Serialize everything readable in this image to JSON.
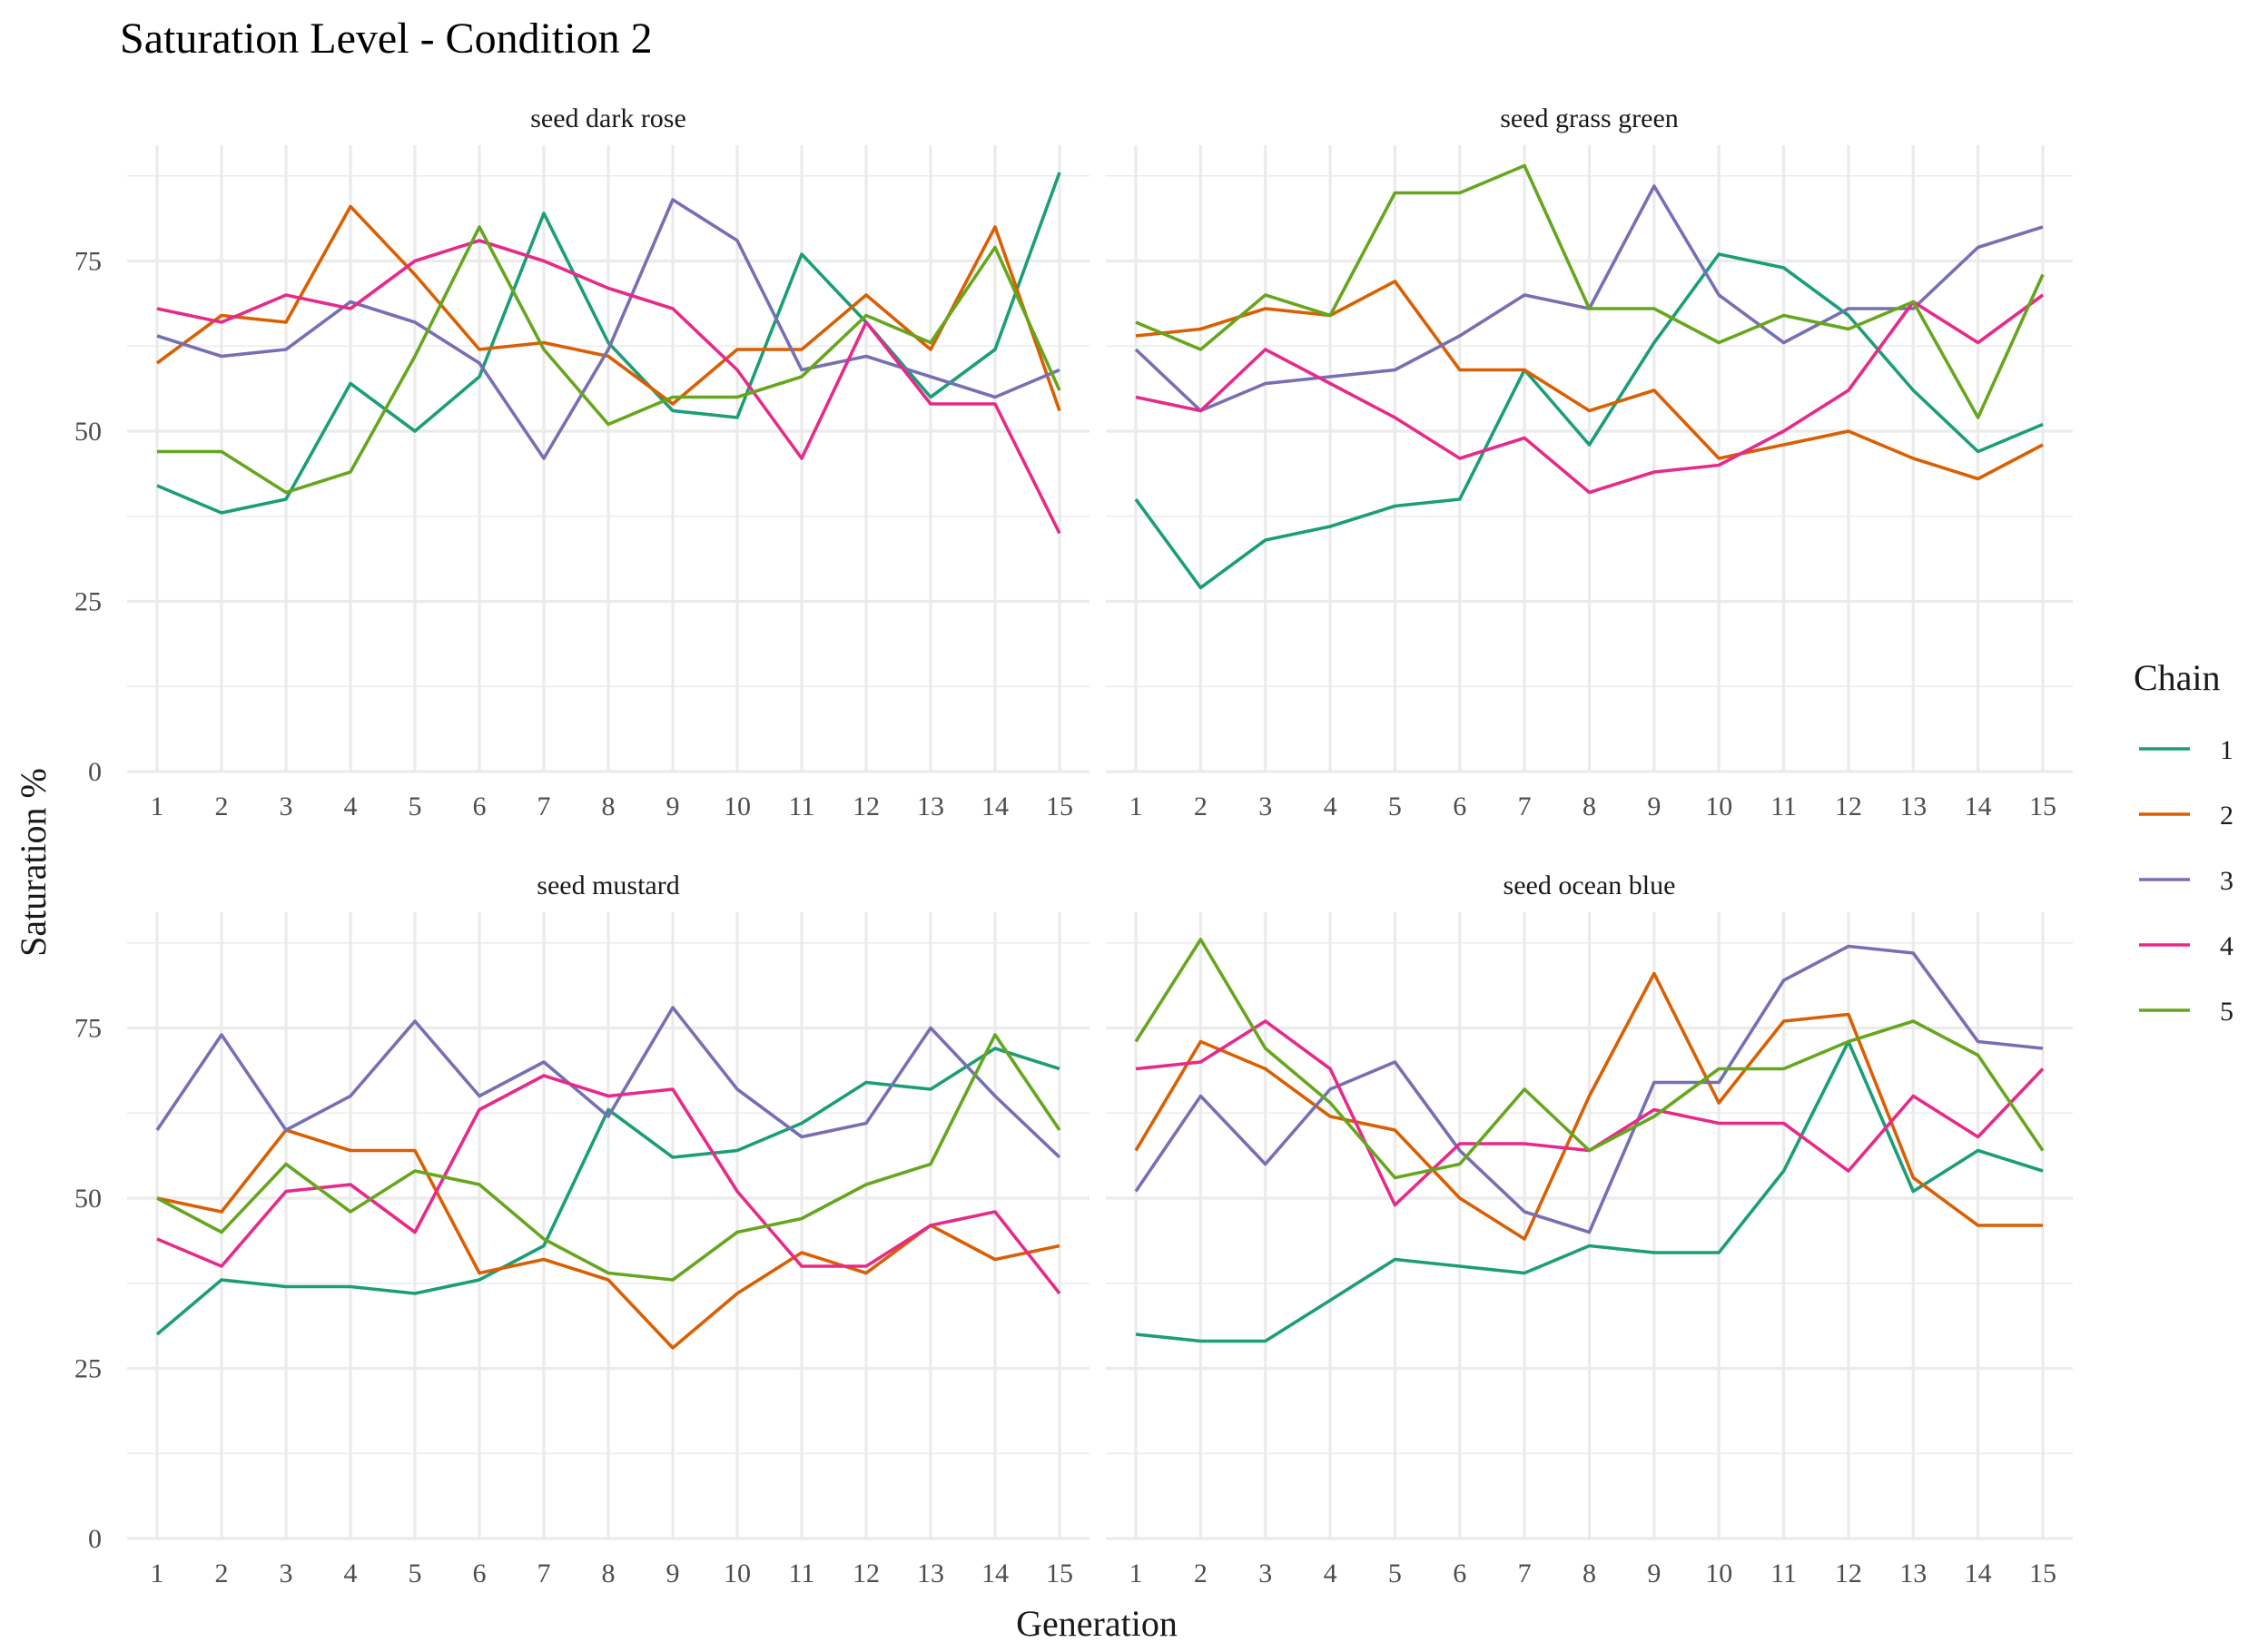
{
  "chart_data": {
    "type": "line",
    "title": "Saturation Level - Condition 2",
    "xlabel": "Generation",
    "ylabel": "Saturation %",
    "x": [
      1,
      2,
      3,
      4,
      5,
      6,
      7,
      8,
      9,
      10,
      11,
      12,
      13,
      14,
      15
    ],
    "x_ticks": [
      "1",
      "2",
      "3",
      "4",
      "5",
      "6",
      "7",
      "8",
      "9",
      "10",
      "11",
      "12",
      "13",
      "14",
      "15"
    ],
    "y_ticks": [
      0,
      25,
      50,
      75
    ],
    "ylim": [
      0,
      92
    ],
    "grid": true,
    "legend": {
      "title": "Chain",
      "position": "right",
      "entries": [
        {
          "label": "1",
          "color": "#1b9e77"
        },
        {
          "label": "2",
          "color": "#d95f02"
        },
        {
          "label": "3",
          "color": "#7570b3"
        },
        {
          "label": "4",
          "color": "#e7298a"
        },
        {
          "label": "5",
          "color": "#66a61e"
        }
      ]
    },
    "panels": [
      {
        "label": "seed dark rose",
        "series": [
          {
            "name": "1",
            "color": "#1b9e77",
            "values": [
              42,
              38,
              40,
              57,
              50,
              58,
              82,
              63,
              53,
              52,
              76,
              66,
              55,
              62,
              88
            ]
          },
          {
            "name": "2",
            "color": "#d95f02",
            "values": [
              60,
              67,
              66,
              83,
              73,
              62,
              63,
              61,
              54,
              62,
              62,
              70,
              62,
              80,
              53
            ]
          },
          {
            "name": "3",
            "color": "#7570b3",
            "values": [
              64,
              61,
              62,
              69,
              66,
              60,
              46,
              62,
              84,
              78,
              59,
              61,
              58,
              55,
              59
            ]
          },
          {
            "name": "4",
            "color": "#e7298a",
            "values": [
              68,
              66,
              70,
              68,
              75,
              78,
              75,
              71,
              68,
              59,
              46,
              66,
              54,
              54,
              35
            ]
          },
          {
            "name": "5",
            "color": "#66a61e",
            "values": [
              47,
              47,
              41,
              44,
              61,
              80,
              62,
              51,
              55,
              55,
              58,
              67,
              63,
              77,
              56
            ]
          }
        ]
      },
      {
        "label": "seed grass green",
        "series": [
          {
            "name": "1",
            "color": "#1b9e77",
            "values": [
              40,
              27,
              34,
              36,
              39,
              40,
              59,
              48,
              63,
              76,
              74,
              67,
              56,
              47,
              51
            ]
          },
          {
            "name": "2",
            "color": "#d95f02",
            "values": [
              64,
              65,
              68,
              67,
              72,
              59,
              59,
              53,
              56,
              46,
              48,
              50,
              46,
              43,
              48
            ]
          },
          {
            "name": "3",
            "color": "#7570b3",
            "values": [
              62,
              53,
              57,
              58,
              59,
              64,
              70,
              68,
              86,
              70,
              63,
              68,
              68,
              77,
              80
            ]
          },
          {
            "name": "4",
            "color": "#e7298a",
            "values": [
              55,
              53,
              62,
              57,
              52,
              46,
              49,
              41,
              44,
              45,
              50,
              56,
              69,
              63,
              70
            ]
          },
          {
            "name": "5",
            "color": "#66a61e",
            "values": [
              66,
              62,
              70,
              67,
              85,
              85,
              89,
              68,
              68,
              63,
              67,
              65,
              69,
              52,
              73
            ]
          }
        ]
      },
      {
        "label": "seed mustard",
        "series": [
          {
            "name": "1",
            "color": "#1b9e77",
            "values": [
              30,
              38,
              37,
              37,
              36,
              38,
              43,
              63,
              56,
              57,
              61,
              67,
              66,
              72,
              69
            ]
          },
          {
            "name": "2",
            "color": "#d95f02",
            "values": [
              50,
              48,
              60,
              57,
              57,
              39,
              41,
              38,
              28,
              36,
              42,
              39,
              46,
              41,
              43
            ]
          },
          {
            "name": "3",
            "color": "#7570b3",
            "values": [
              60,
              74,
              60,
              65,
              76,
              65,
              70,
              62,
              78,
              66,
              59,
              61,
              75,
              65,
              56
            ]
          },
          {
            "name": "4",
            "color": "#e7298a",
            "values": [
              44,
              40,
              51,
              52,
              45,
              63,
              68,
              65,
              66,
              51,
              40,
              40,
              46,
              48,
              36
            ]
          },
          {
            "name": "5",
            "color": "#66a61e",
            "values": [
              50,
              45,
              55,
              48,
              54,
              52,
              44,
              39,
              38,
              45,
              47,
              52,
              55,
              74,
              60
            ]
          }
        ]
      },
      {
        "label": "seed ocean blue",
        "series": [
          {
            "name": "1",
            "color": "#1b9e77",
            "values": [
              30,
              29,
              29,
              35,
              41,
              40,
              39,
              43,
              42,
              42,
              54,
              73,
              51,
              57,
              54
            ]
          },
          {
            "name": "2",
            "color": "#d95f02",
            "values": [
              57,
              73,
              69,
              62,
              60,
              50,
              44,
              65,
              83,
              64,
              76,
              77,
              53,
              46,
              46
            ]
          },
          {
            "name": "3",
            "color": "#7570b3",
            "values": [
              51,
              65,
              55,
              66,
              70,
              57,
              48,
              45,
              67,
              67,
              82,
              87,
              86,
              73,
              72
            ]
          },
          {
            "name": "4",
            "color": "#e7298a",
            "values": [
              69,
              70,
              76,
              69,
              49,
              58,
              58,
              57,
              63,
              61,
              61,
              54,
              65,
              59,
              69
            ]
          },
          {
            "name": "5",
            "color": "#66a61e",
            "values": [
              73,
              88,
              72,
              64,
              53,
              55,
              66,
              57,
              62,
              69,
              69,
              73,
              76,
              71,
              57
            ]
          }
        ]
      }
    ]
  }
}
